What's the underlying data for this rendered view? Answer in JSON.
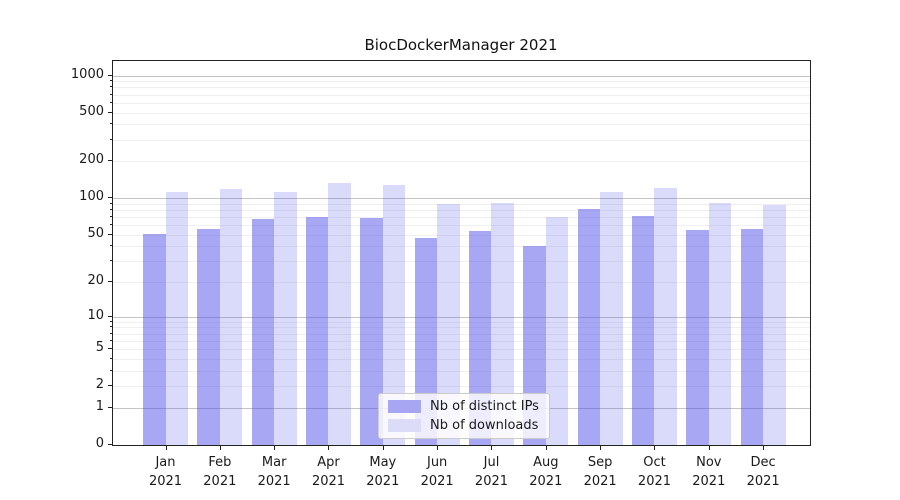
{
  "title": "BiocDockerManager 2021",
  "chart_data": {
    "type": "bar",
    "title": "BiocDockerManager 2021",
    "scale": "log1p",
    "y_max": 1312,
    "ylim": [
      0,
      1312
    ],
    "grid": "on",
    "y_ticks": [
      0,
      1,
      2,
      5,
      10,
      20,
      50,
      100,
      200,
      500,
      1000
    ],
    "major_gridlines": [
      1,
      10,
      100,
      1000
    ],
    "minor_gridlines": [
      2,
      3,
      4,
      5,
      6,
      7,
      8,
      9,
      20,
      30,
      40,
      50,
      60,
      70,
      80,
      90,
      200,
      300,
      400,
      500,
      600,
      700,
      800,
      900
    ],
    "categories": [
      "Jan",
      "Feb",
      "Mar",
      "Apr",
      "May",
      "Jun",
      "Jul",
      "Aug",
      "Sep",
      "Oct",
      "Nov",
      "Dec"
    ],
    "year": "2021",
    "series": [
      {
        "name": "Nb of distinct IPs",
        "color": "rgba(80,80,232,0.50)",
        "legend_color": "#a6a6f2",
        "values": [
          51,
          56,
          68,
          70,
          69,
          47,
          54,
          40,
          82,
          72,
          55,
          56
        ]
      },
      {
        "name": "Nb of downloads",
        "color": "rgba(80,80,232,0.21)",
        "legend_color": "#dcdcf9",
        "values": [
          112,
          118,
          113,
          132,
          129,
          89,
          92,
          70,
          113,
          122,
          91,
          88
        ]
      }
    ],
    "legend_position": "bottom-center",
    "colors": {
      "major_grid": "#c4c4c4",
      "minor_grid": "#efefef",
      "axis": "#222222",
      "text": "#1a1a1a"
    }
  }
}
